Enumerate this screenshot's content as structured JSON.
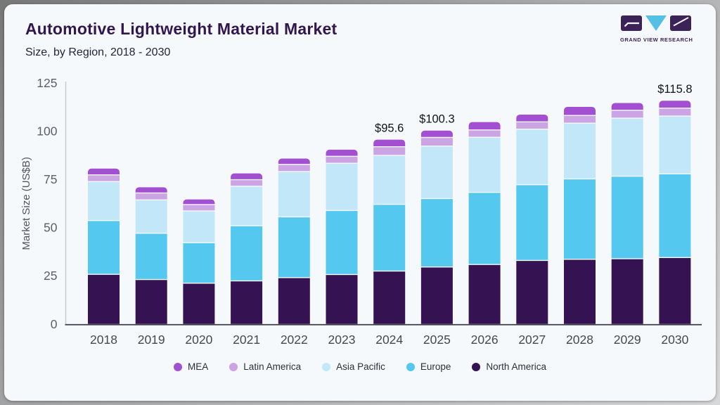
{
  "header": {
    "title": "Automotive Lightweight Material Market",
    "subtitle": "Size, by Region, 2018 - 2030"
  },
  "logo": {
    "brand": "GRAND VIEW RESEARCH",
    "block_color": "#3b2358",
    "triangle_color": "#56bfe6"
  },
  "chart_data": {
    "type": "bar",
    "stacked": true,
    "title": "Automotive Lightweight Material Market Size, by Region, 2018 - 2030",
    "xlabel": "",
    "ylabel": "Market Size (US$B)",
    "ylim": [
      0,
      125
    ],
    "yticks": [
      0,
      25,
      50,
      75,
      100,
      125
    ],
    "grid": false,
    "legend_position": "bottom",
    "categories": [
      "2018",
      "2019",
      "2020",
      "2021",
      "2022",
      "2023",
      "2024",
      "2025",
      "2026",
      "2027",
      "2028",
      "2029",
      "2030"
    ],
    "series": [
      {
        "name": "North America",
        "color": "#351251",
        "values": [
          26.0,
          23.3,
          21.4,
          22.6,
          24.3,
          25.9,
          27.7,
          29.8,
          31.1,
          33.2,
          33.8,
          34.1,
          34.7
        ]
      },
      {
        "name": "Europe",
        "color": "#55c8f0",
        "values": [
          27.9,
          24.0,
          21.0,
          28.6,
          31.5,
          33.2,
          34.6,
          35.5,
          37.4,
          39.3,
          41.7,
          42.8,
          43.4
        ]
      },
      {
        "name": "Asia Pacific",
        "color": "#c2e7f9",
        "values": [
          20.2,
          17.3,
          16.5,
          20.5,
          23.5,
          24.5,
          25.4,
          27.2,
          28.6,
          28.8,
          28.9,
          30.1,
          30.0
        ]
      },
      {
        "name": "Latin America",
        "color": "#cba4e4",
        "values": [
          3.5,
          3.6,
          3.3,
          3.4,
          3.7,
          3.6,
          4.5,
          4.5,
          3.8,
          3.8,
          4.0,
          4.1,
          4.1
        ]
      },
      {
        "name": "MEA",
        "color": "#a34fd2",
        "values": [
          3.0,
          2.7,
          2.4,
          3.0,
          2.8,
          3.2,
          3.4,
          3.3,
          3.8,
          3.5,
          4.2,
          3.5,
          3.6
        ]
      }
    ],
    "totals": [
      80.6,
      70.9,
      64.6,
      78.1,
      85.8,
      90.4,
      95.6,
      100.3,
      104.7,
      108.6,
      112.6,
      114.6,
      115.8
    ],
    "annotations": [
      {
        "category": "2024",
        "label": "$95.6"
      },
      {
        "category": "2025",
        "label": "$100.3"
      },
      {
        "category": "2030",
        "label": "$115.8"
      }
    ]
  },
  "legend": {
    "items": [
      {
        "label": "MEA",
        "color": "#a34fd2"
      },
      {
        "label": "Latin America",
        "color": "#cba4e4"
      },
      {
        "label": "Asia Pacific",
        "color": "#c2e7f9"
      },
      {
        "label": "Europe",
        "color": "#55c8f0"
      },
      {
        "label": "North America",
        "color": "#351251"
      }
    ]
  }
}
